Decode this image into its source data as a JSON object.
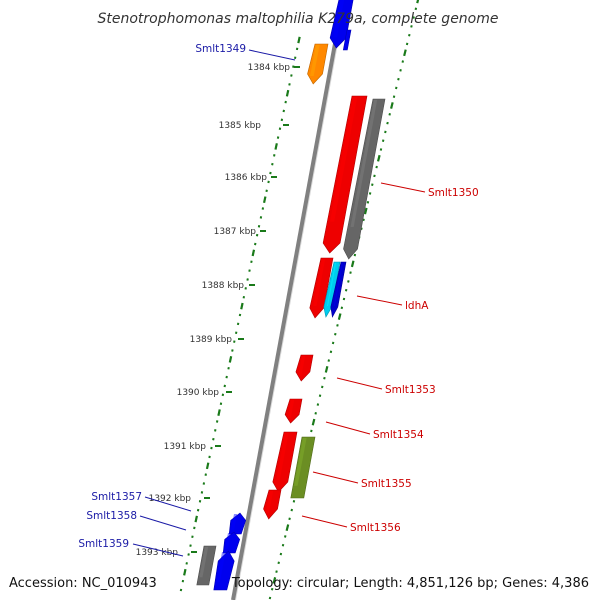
{
  "title": "Stenotrophomonas maltophilia K279a, complete genome",
  "accession": "Accession: NC_010943",
  "summary": "Topology: circular; Length: 4,851,126 bp; Genes: 4,386",
  "colors": {
    "forward_label": "#1a1aa6",
    "reverse_label": "#cc0000",
    "tick_marks": "#1a7a1a",
    "backbone": "#808080"
  },
  "ticks": [
    {
      "label": "1384 kbp"
    },
    {
      "label": "1385 kbp"
    },
    {
      "label": "1386 kbp"
    },
    {
      "label": "1387 kbp"
    },
    {
      "label": "1388 kbp"
    },
    {
      "label": "1389 kbp"
    },
    {
      "label": "1390 kbp"
    },
    {
      "label": "1391 kbp"
    },
    {
      "label": "1392 kbp"
    },
    {
      "label": "1393 kbp"
    }
  ],
  "gene_labels": [
    {
      "name": "Smlt1349",
      "strand": "forward"
    },
    {
      "name": "Smlt1350",
      "strand": "reverse"
    },
    {
      "name": "ldhA",
      "strand": "reverse"
    },
    {
      "name": "Smlt1353",
      "strand": "reverse"
    },
    {
      "name": "Smlt1354",
      "strand": "reverse"
    },
    {
      "name": "Smlt1355",
      "strand": "reverse"
    },
    {
      "name": "Smlt1356",
      "strand": "reverse"
    },
    {
      "name": "Smlt1357",
      "strand": "forward"
    },
    {
      "name": "Smlt1358",
      "strand": "forward"
    },
    {
      "name": "Smlt1359",
      "strand": "forward"
    }
  ],
  "features": [
    {
      "kind": "gene",
      "strand": "forward",
      "color": "#0000ee"
    },
    {
      "kind": "gene",
      "strand": "forward",
      "color": "#0000ee"
    },
    {
      "kind": "gene",
      "strand": "forward",
      "color": "#ff8800"
    },
    {
      "kind": "gene",
      "strand": "reverse",
      "color": "#ee0000"
    },
    {
      "kind": "cds",
      "strand": "reverse",
      "color": "#666666"
    },
    {
      "kind": "gene",
      "strand": "reverse",
      "color": "#ee0000"
    },
    {
      "kind": "cds",
      "strand": "reverse",
      "color": "#00ccee"
    },
    {
      "kind": "cds",
      "strand": "reverse",
      "color": "#0000cc"
    },
    {
      "kind": "gene",
      "strand": "reverse",
      "color": "#ee0000"
    },
    {
      "kind": "gene",
      "strand": "reverse",
      "color": "#ee0000"
    },
    {
      "kind": "gene",
      "strand": "reverse",
      "color": "#ee0000"
    },
    {
      "kind": "cds",
      "strand": "reverse",
      "color": "#6b8e23"
    },
    {
      "kind": "gene",
      "strand": "reverse",
      "color": "#ee0000"
    },
    {
      "kind": "gene",
      "strand": "forward",
      "color": "#0000ee"
    },
    {
      "kind": "gene",
      "strand": "forward",
      "color": "#0000ee"
    },
    {
      "kind": "gene",
      "strand": "forward",
      "color": "#0000ee"
    },
    {
      "kind": "cds",
      "strand": "forward",
      "color": "#666666"
    }
  ]
}
